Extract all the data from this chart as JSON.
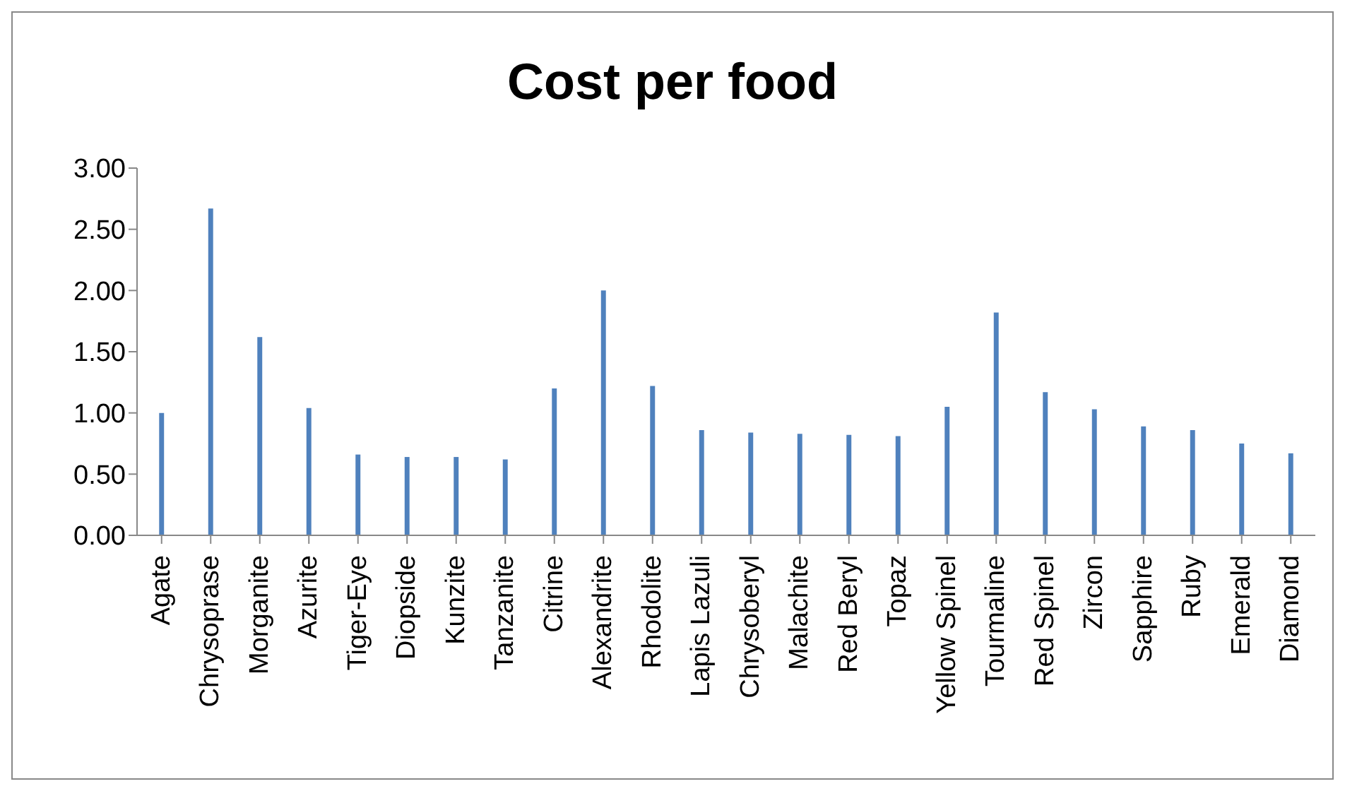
{
  "chart_data": {
    "type": "bar",
    "title": "Cost per food",
    "categories": [
      "Agate",
      "Chrysoprase",
      "Morganite",
      "Azurite",
      "Tiger-Eye",
      "Diopside",
      "Kunzite",
      "Tanzanite",
      "Citrine",
      "Alexandrite",
      "Rhodolite",
      "Lapis Lazuli",
      "Chrysoberyl",
      "Malachite",
      "Red Beryl",
      "Topaz",
      "Yellow Spinel",
      "Tourmaline",
      "Red Spinel",
      "Zircon",
      "Sapphire",
      "Ruby",
      "Emerald",
      "Diamond"
    ],
    "values": [
      1.0,
      2.67,
      1.62,
      1.04,
      0.66,
      0.64,
      0.64,
      0.62,
      1.2,
      2.0,
      1.22,
      0.86,
      0.84,
      0.83,
      0.82,
      0.81,
      1.05,
      1.82,
      1.17,
      1.03,
      0.89,
      0.86,
      0.75,
      0.67
    ],
    "color": "#4f81bd",
    "ylim": [
      0,
      3
    ],
    "yticks": [
      {
        "value": 0,
        "label": "0.00"
      },
      {
        "value": 0.5,
        "label": "0.50"
      },
      {
        "value": 1,
        "label": "1.00"
      },
      {
        "value": 1.5,
        "label": "1.50"
      },
      {
        "value": 2,
        "label": "2.00"
      },
      {
        "value": 2.5,
        "label": "2.50"
      },
      {
        "value": 3,
        "label": "3.00"
      }
    ],
    "grid": false,
    "legend": false
  }
}
